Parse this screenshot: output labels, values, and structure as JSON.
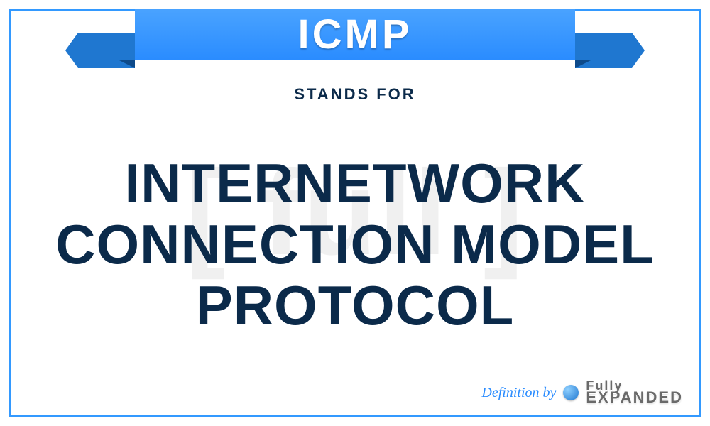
{
  "colors": {
    "border": "#3399ff",
    "ribbon_main_top": "#4aa3ff",
    "ribbon_main_bottom": "#2a8cff",
    "ribbon_tail": "#1f77d0",
    "ribbon_fold": "#0d4a8a",
    "text_dark": "#0b2a4a",
    "acronym_text": "#ffffff",
    "watermark": "#f0f0f0",
    "credit_text": "#2a8cff",
    "credit_logo": "#6a6a6a",
    "background": "#ffffff"
  },
  "typography": {
    "acronym_fontsize": 58,
    "stands_for_fontsize": 22,
    "definition_fontsize": 78,
    "watermark_fontsize": 170,
    "credit_label_fontsize": 20
  },
  "acronym": "ICMP",
  "stands_for_label": "STANDS FOR",
  "definition": "INTERNETWORK CONNECTION MODEL PROTOCOL",
  "watermark_text": "[ full ]",
  "credit": {
    "label": "Definition by",
    "brand_line1": "Fully",
    "brand_line2": "EXPANDED"
  }
}
